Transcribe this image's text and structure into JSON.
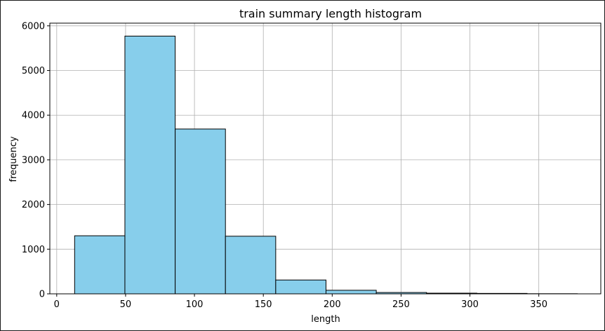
{
  "chart_data": {
    "type": "bar",
    "title": "train summary length histogram",
    "xlabel": "length",
    "ylabel": "frequency",
    "bins": [
      {
        "start": 13,
        "end": 49.5,
        "count": 1300
      },
      {
        "start": 49.5,
        "end": 86,
        "count": 5770
      },
      {
        "start": 86,
        "end": 122.5,
        "count": 3690
      },
      {
        "start": 122.5,
        "end": 159,
        "count": 1290
      },
      {
        "start": 159,
        "end": 195.5,
        "count": 310
      },
      {
        "start": 195.5,
        "end": 232,
        "count": 80
      },
      {
        "start": 232,
        "end": 268.5,
        "count": 30
      },
      {
        "start": 268.5,
        "end": 305,
        "count": 15
      },
      {
        "start": 305,
        "end": 341.5,
        "count": 10
      },
      {
        "start": 341.5,
        "end": 378,
        "count": 3
      }
    ],
    "xlim": [
      -5,
      395
    ],
    "ylim": [
      0,
      6060
    ],
    "xticks": [
      0,
      50,
      100,
      150,
      200,
      250,
      300,
      350
    ],
    "yticks": [
      0,
      1000,
      2000,
      3000,
      4000,
      5000,
      6000
    ],
    "grid": true,
    "colors": {
      "bar_fill": "#87ceeb",
      "bar_edge": "#000000",
      "grid": "#b0b0b0",
      "axes": "#000000"
    }
  }
}
